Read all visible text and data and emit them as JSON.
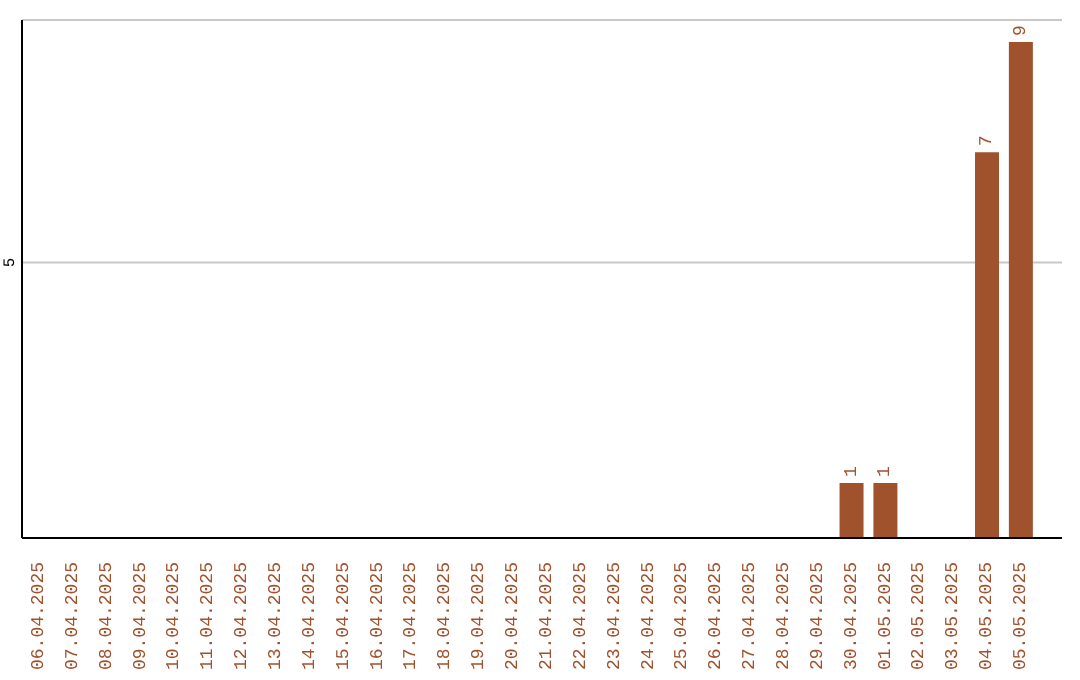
{
  "chart_data": {
    "type": "bar",
    "categories": [
      "06.04.2025",
      "07.04.2025",
      "08.04.2025",
      "09.04.2025",
      "10.04.2025",
      "11.04.2025",
      "12.04.2025",
      "13.04.2025",
      "14.04.2025",
      "15.04.2025",
      "16.04.2025",
      "17.04.2025",
      "18.04.2025",
      "19.04.2025",
      "20.04.2025",
      "21.04.2025",
      "22.04.2025",
      "23.04.2025",
      "24.04.2025",
      "25.04.2025",
      "26.04.2025",
      "27.04.2025",
      "28.04.2025",
      "29.04.2025",
      "30.04.2025",
      "01.05.2025",
      "02.05.2025",
      "03.05.2025",
      "04.05.2025",
      "05.05.2025"
    ],
    "values": [
      null,
      null,
      null,
      null,
      null,
      null,
      null,
      null,
      null,
      null,
      null,
      null,
      null,
      null,
      null,
      null,
      null,
      null,
      null,
      null,
      null,
      null,
      null,
      null,
      1,
      1,
      null,
      null,
      7,
      9
    ],
    "color": "#a0522d",
    "ylim": [
      0,
      9.4
    ],
    "yticks": [
      5
    ],
    "grid": "y",
    "data_labels": true
  }
}
